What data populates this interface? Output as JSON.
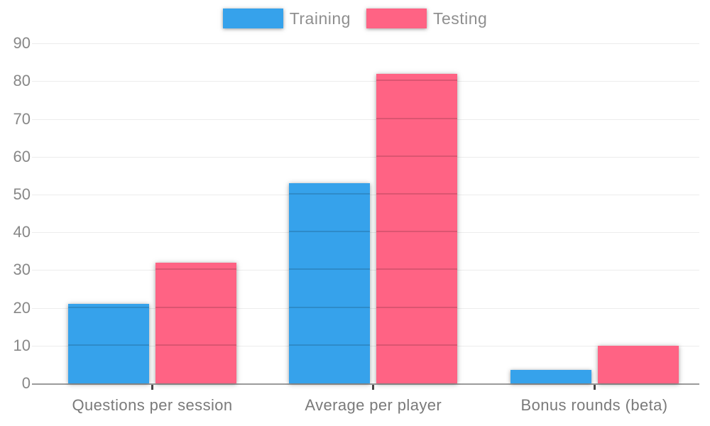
{
  "chart_data": {
    "type": "bar",
    "title": "",
    "categories": [
      "Questions per session",
      "Average per player",
      "Bonus rounds (beta)"
    ],
    "series": [
      {
        "name": "Training",
        "color": "#36A2EB",
        "values": [
          21,
          53,
          3.5
        ]
      },
      {
        "name": "Testing",
        "color": "#FF6384",
        "values": [
          32,
          82,
          10
        ]
      }
    ],
    "ylabel": "",
    "xlabel": "",
    "ylim": [
      0,
      90
    ],
    "ytick_step": 10,
    "yticks": [
      "0",
      "10",
      "20",
      "30",
      "40",
      "50",
      "60",
      "70",
      "80",
      "90"
    ],
    "grid": true,
    "legend_position": "top",
    "axis_color": "#9b9b9b",
    "tick_text_color": "#878787",
    "category_text_color": "#7a7a7a"
  }
}
